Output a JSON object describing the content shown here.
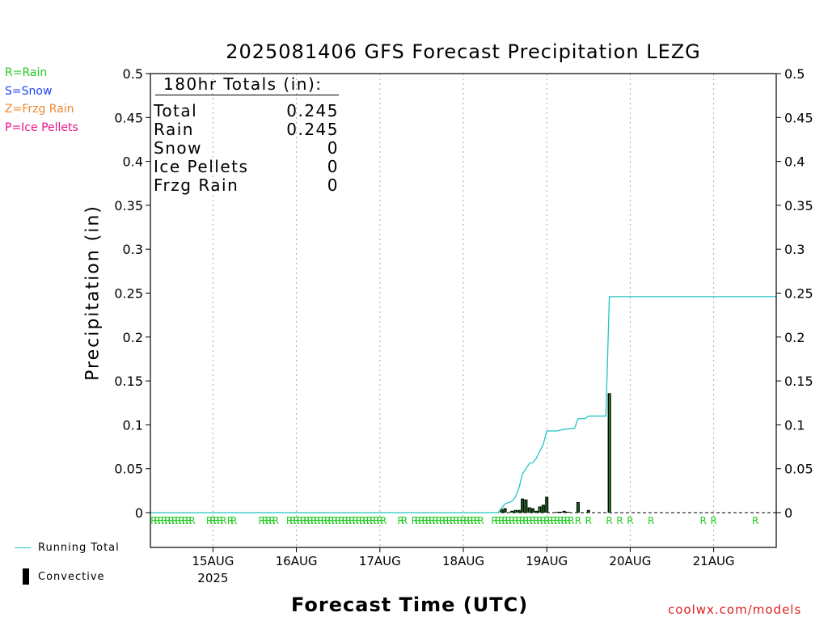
{
  "title": "2025081406 GFS Forecast Precipitation LEZG",
  "ylabel": "Precipitation (in)",
  "xlabel": "Forecast Time (UTC)",
  "credit": "coolwx.com/models",
  "legend_types": [
    {
      "text": "R=Rain",
      "color": "#22cc22"
    },
    {
      "text": "S=Snow",
      "color": "#2244ee"
    },
    {
      "text": "Z=Frzg Rain",
      "color": "#ee8833"
    },
    {
      "text": "P=Ice Pellets",
      "color": "#ee1188"
    }
  ],
  "legend_lines": {
    "running_total": "Running Total",
    "convective": "Convective"
  },
  "totals": {
    "header": "180hr Totals (in):",
    "rows": [
      {
        "label": "Total",
        "value": "0.245"
      },
      {
        "label": "Rain",
        "value": "0.245"
      },
      {
        "label": "Snow",
        "value": "0"
      },
      {
        "label": "Ice Pellets",
        "value": "0"
      },
      {
        "label": "Frzg Rain",
        "value": "0"
      }
    ]
  },
  "colors": {
    "running_total": "#22c4c4",
    "bar": "#000000",
    "convective_fill": "#22bb22",
    "rain_marker": "#22cc22",
    "grid": "#aaaaaa"
  },
  "chart_data": {
    "type": "bar",
    "title": "2025081406 GFS Forecast Precipitation LEZG",
    "xlabel": "Forecast Time (UTC)",
    "ylabel": "Precipitation (in)",
    "x_unit": "forecast hour",
    "xlim": [
      0,
      180
    ],
    "ylim": [
      0,
      0.5
    ],
    "yticks": [
      0,
      0.05,
      0.1,
      0.15,
      0.2,
      0.25,
      0.3,
      0.35,
      0.4,
      0.45,
      0.5
    ],
    "ytick_labels": [
      "0",
      "0.05",
      "0.1",
      "0.15",
      "0.2",
      "0.25",
      "0.3",
      "0.35",
      "0.4",
      "0.45",
      "0.5"
    ],
    "xticks": [
      {
        "hour": 18,
        "label": "15AUG",
        "sublabel": "2025"
      },
      {
        "hour": 42,
        "label": "16AUG"
      },
      {
        "hour": 66,
        "label": "17AUG"
      },
      {
        "hour": 90,
        "label": "18AUG"
      },
      {
        "hour": 114,
        "label": "19AUG"
      },
      {
        "hour": 138,
        "label": "20AUG"
      },
      {
        "hour": 162,
        "label": "21AUG"
      }
    ],
    "grid": "vertical dotted at day ticks",
    "series": [
      {
        "name": "Convective",
        "type": "bar",
        "points": [
          [
            101,
            0.004
          ],
          [
            102,
            0.005
          ],
          [
            104,
            0.002
          ],
          [
            105,
            0.003
          ],
          [
            106,
            0.003
          ],
          [
            107,
            0.016
          ],
          [
            108,
            0.015
          ],
          [
            109,
            0.006
          ],
          [
            110,
            0.005
          ],
          [
            111,
            0.002
          ],
          [
            112,
            0.007
          ],
          [
            113,
            0.009
          ],
          [
            114,
            0.018
          ],
          [
            117,
            0.001
          ],
          [
            118,
            0.001
          ],
          [
            119,
            0.002
          ],
          [
            120,
            0.001
          ],
          [
            123,
            0.012
          ],
          [
            126,
            0.003
          ],
          [
            132,
            0.136
          ]
        ]
      },
      {
        "name": "Running Total",
        "type": "line",
        "points": [
          [
            0,
            0
          ],
          [
            100,
            0
          ],
          [
            101,
            0.005
          ],
          [
            102,
            0.01
          ],
          [
            104,
            0.013
          ],
          [
            105,
            0.018
          ],
          [
            106,
            0.028
          ],
          [
            107,
            0.044
          ],
          [
            108,
            0.05
          ],
          [
            109,
            0.056
          ],
          [
            110,
            0.057
          ],
          [
            111,
            0.062
          ],
          [
            112,
            0.07
          ],
          [
            113,
            0.078
          ],
          [
            114,
            0.093
          ],
          [
            117,
            0.093
          ],
          [
            119,
            0.095
          ],
          [
            122,
            0.096
          ],
          [
            123,
            0.107
          ],
          [
            125,
            0.107
          ],
          [
            126,
            0.11
          ],
          [
            131,
            0.11
          ],
          [
            132,
            0.246
          ],
          [
            180,
            0.246
          ]
        ]
      }
    ],
    "type_markers": {
      "symbol": "R",
      "hours": [
        1,
        2,
        3,
        4,
        5,
        6,
        7,
        8,
        9,
        10,
        11,
        12,
        17,
        18,
        19,
        20,
        21,
        23,
        24,
        32,
        33,
        34,
        35,
        36,
        40,
        41,
        42,
        43,
        44,
        45,
        46,
        47,
        48,
        49,
        50,
        51,
        52,
        53,
        54,
        55,
        56,
        57,
        58,
        59,
        60,
        61,
        62,
        63,
        64,
        65,
        66,
        67,
        72,
        73,
        76,
        77,
        78,
        79,
        80,
        81,
        82,
        83,
        84,
        85,
        86,
        87,
        88,
        89,
        90,
        91,
        92,
        93,
        94,
        95,
        99,
        100,
        101,
        102,
        103,
        104,
        105,
        106,
        107,
        108,
        109,
        110,
        111,
        112,
        113,
        114,
        115,
        116,
        117,
        118,
        119,
        120,
        121,
        123,
        126,
        132,
        135,
        138,
        144,
        159,
        162,
        174
      ]
    }
  }
}
